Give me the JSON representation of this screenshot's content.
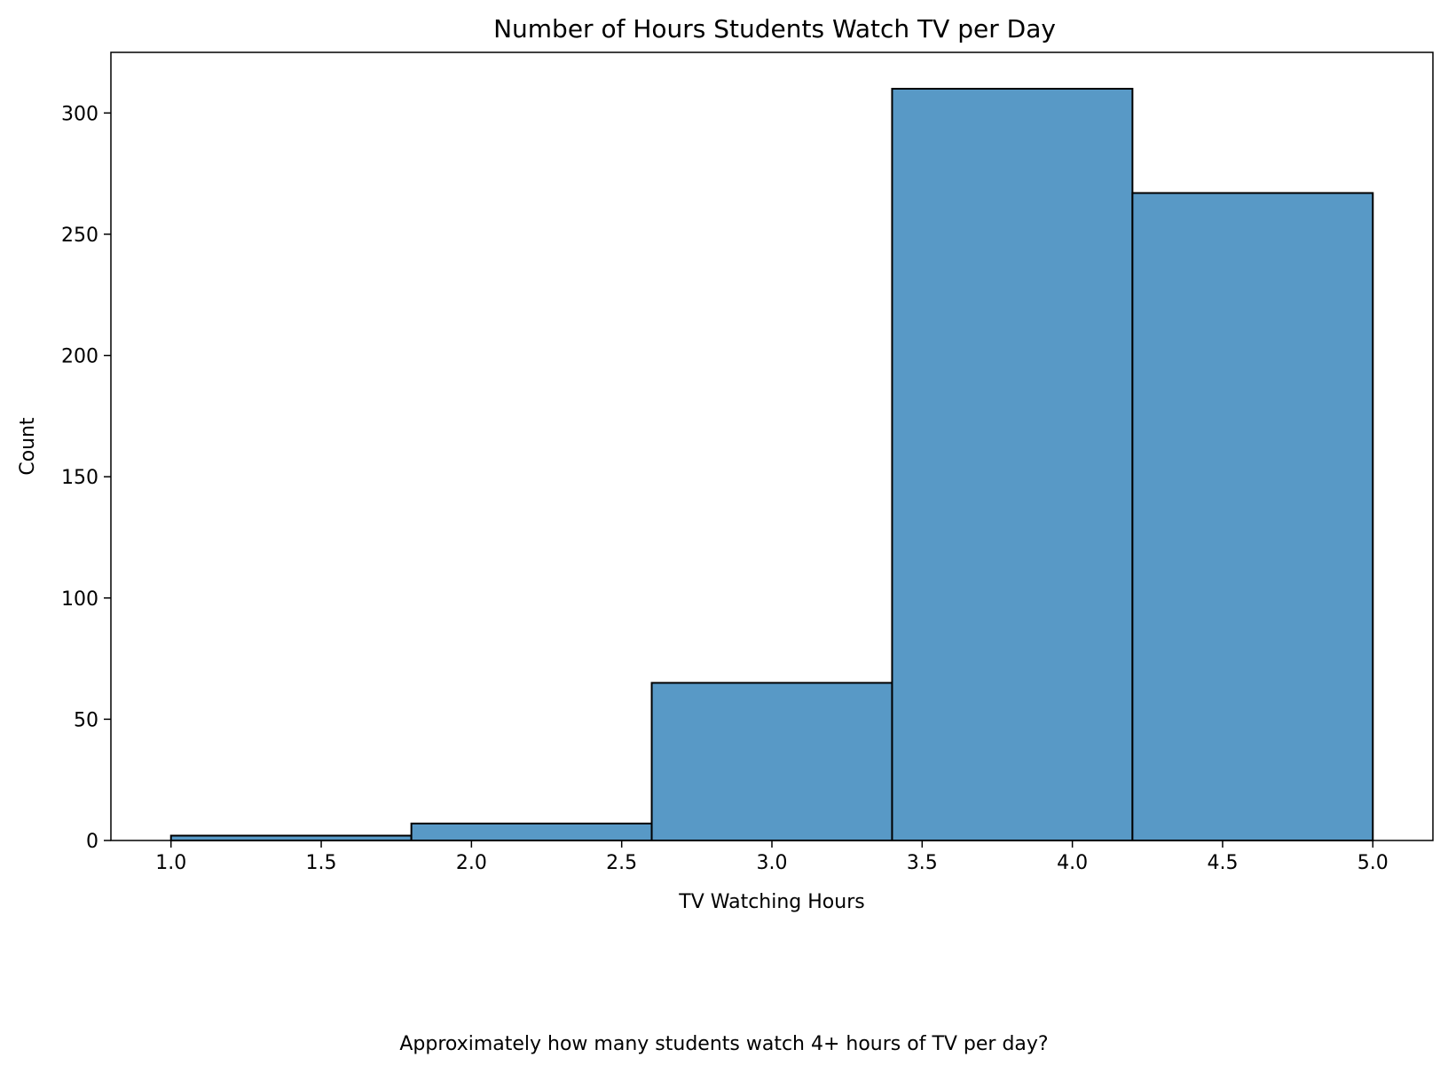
{
  "chart_data": {
    "type": "histogram",
    "title": "Number of Hours Students Watch TV per Day",
    "xlabel": "TV Watching Hours",
    "ylabel": "Count",
    "bins": [
      {
        "x0": 1.0,
        "x1": 1.8,
        "count": 2
      },
      {
        "x0": 1.8,
        "x1": 2.6,
        "count": 7
      },
      {
        "x0": 2.6,
        "x1": 3.4,
        "count": 65
      },
      {
        "x0": 3.4,
        "x1": 4.2,
        "count": 310
      },
      {
        "x0": 4.2,
        "x1": 5.0,
        "count": 267
      }
    ],
    "xlim": [
      0.8,
      5.2
    ],
    "ylim": [
      0,
      325
    ],
    "xticks": [
      {
        "value": 1.0,
        "label": "1.0"
      },
      {
        "value": 1.5,
        "label": "1.5"
      },
      {
        "value": 2.0,
        "label": "2.0"
      },
      {
        "value": 2.5,
        "label": "2.5"
      },
      {
        "value": 3.0,
        "label": "3.0"
      },
      {
        "value": 3.5,
        "label": "3.5"
      },
      {
        "value": 4.0,
        "label": "4.0"
      },
      {
        "value": 4.5,
        "label": "4.5"
      },
      {
        "value": 5.0,
        "label": "5.0"
      }
    ],
    "yticks": [
      {
        "value": 0,
        "label": "0"
      },
      {
        "value": 50,
        "label": "50"
      },
      {
        "value": 100,
        "label": "100"
      },
      {
        "value": 150,
        "label": "150"
      },
      {
        "value": 200,
        "label": "200"
      },
      {
        "value": 250,
        "label": "250"
      },
      {
        "value": 300,
        "label": "300"
      }
    ],
    "grid": false,
    "bar_color": "#5899c6",
    "edge_color": "#000000"
  },
  "caption": "Approximately how many students watch 4+ hours of TV per day?"
}
